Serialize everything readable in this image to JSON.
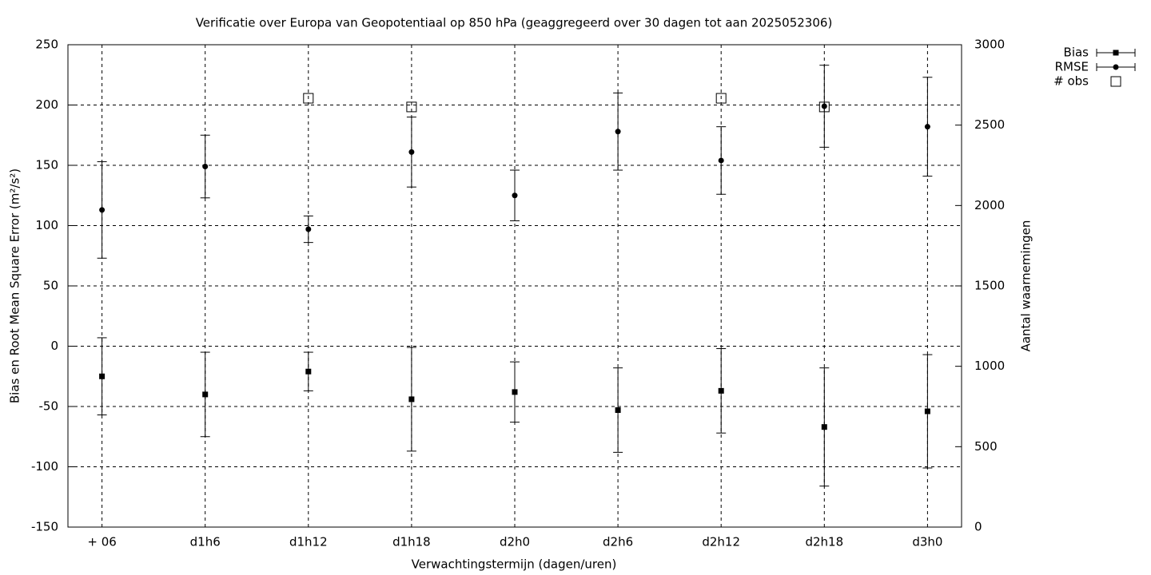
{
  "chart_data": {
    "type": "errorbar",
    "title": "Verificatie over Europa van Geopotentiaal op 850 hPa (geaggregeerd over 30 dagen tot aan 2025052306)",
    "x_label": "Verwachtingstermijn (dagen/uren)",
    "y_label": "Bias en Root Mean Square Error (m²/s²)",
    "y2_label": "Aantal waarnemingen",
    "categories": [
      "+ 06",
      "d1h6",
      "d1h12",
      "d1h18",
      "d2h0",
      "d2h6",
      "d2h12",
      "d2h18",
      "d3h0"
    ],
    "ylim": [
      -150,
      250
    ],
    "yticks": [
      -150,
      -100,
      -50,
      0,
      50,
      100,
      150,
      200,
      250
    ],
    "y2lim": [
      0,
      3000
    ],
    "y2ticks": [
      0,
      500,
      1000,
      1500,
      2000,
      2500,
      3000
    ],
    "grid": true,
    "legend": "top-right",
    "series": [
      {
        "name": "Bias",
        "color": "#000000",
        "marker": "square",
        "values": [
          -25,
          -40,
          -21,
          -44,
          -38,
          -53,
          -37,
          -67,
          -54
        ],
        "errors": [
          32,
          35,
          16,
          43,
          25,
          35,
          35,
          49,
          47
        ]
      },
      {
        "name": "RMSE",
        "color": "#000000",
        "marker": "circle",
        "values": [
          113,
          149,
          97,
          161,
          125,
          178,
          154,
          199,
          182
        ],
        "errors": [
          40,
          26,
          11,
          29,
          21,
          32,
          28,
          34,
          41
        ]
      },
      {
        "name": "# obs",
        "color": "#000000",
        "marker": "open-square",
        "axis": "y2",
        "values": [
          null,
          null,
          2667,
          2613,
          null,
          null,
          2667,
          2613,
          null
        ]
      }
    ]
  }
}
